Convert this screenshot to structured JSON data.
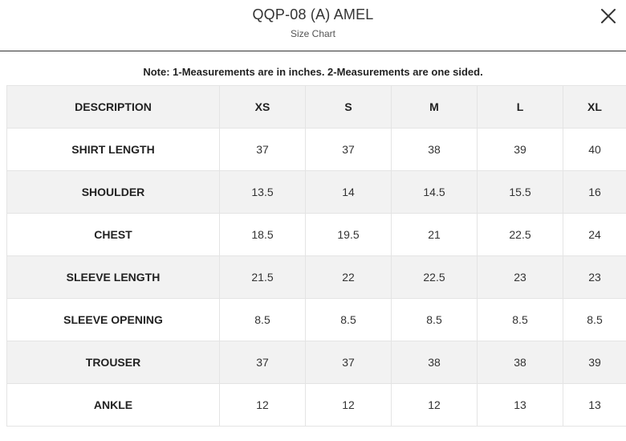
{
  "header": {
    "title": "QQP-08 (A) AMEL",
    "subtitle": "Size Chart",
    "close_icon": "close-icon"
  },
  "note": "Note: 1-Measurements are in inches. 2-Measurements are one sided.",
  "table": {
    "columns": [
      "DESCRIPTION",
      "XS",
      "S",
      "M",
      "L",
      "XL"
    ],
    "rows": [
      {
        "label": "SHIRT LENGTH",
        "values": [
          "37",
          "37",
          "38",
          "39",
          "40"
        ]
      },
      {
        "label": "SHOULDER",
        "values": [
          "13.5",
          "14",
          "14.5",
          "15.5",
          "16"
        ]
      },
      {
        "label": "CHEST",
        "values": [
          "18.5",
          "19.5",
          "21",
          "22.5",
          "24"
        ]
      },
      {
        "label": "SLEEVE LENGTH",
        "values": [
          "21.5",
          "22",
          "22.5",
          "23",
          "23"
        ]
      },
      {
        "label": "SLEEVE OPENING",
        "values": [
          "8.5",
          "8.5",
          "8.5",
          "8.5",
          "8.5"
        ]
      },
      {
        "label": "TROUSER",
        "values": [
          "37",
          "37",
          "38",
          "38",
          "39"
        ]
      },
      {
        "label": "ANKLE",
        "values": [
          "12",
          "12",
          "12",
          "13",
          "13"
        ]
      }
    ]
  },
  "colors": {
    "header_row_bg": "#f2f2f2",
    "alt_row_bg": "#f2f2f2",
    "border": "#e4e4e4",
    "divider": "#333333"
  }
}
